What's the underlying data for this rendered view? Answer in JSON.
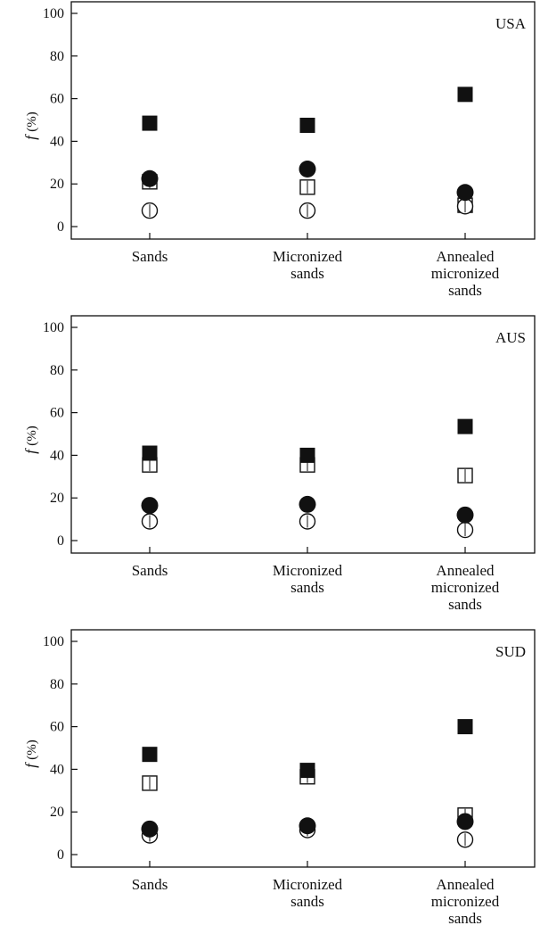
{
  "chart_data": [
    {
      "type": "scatter",
      "panel_label": "USA",
      "categories": [
        "Sands",
        "Micronized\nsands",
        "Annealed\nmicronized\nsands"
      ],
      "ylabel": "f (%)",
      "ylim": [
        0,
        100
      ],
      "yticks": [
        0,
        20,
        40,
        60,
        80,
        100
      ],
      "series": [
        {
          "marker": "filled-square",
          "values": [
            48.5,
            47.5,
            62
          ]
        },
        {
          "marker": "open-square",
          "values": [
            21,
            18.5,
            10
          ]
        },
        {
          "marker": "filled-circle",
          "values": [
            22.5,
            27,
            16
          ]
        },
        {
          "marker": "open-circle",
          "values": [
            7.5,
            7.5,
            9.5
          ]
        }
      ]
    },
    {
      "type": "scatter",
      "panel_label": "AUS",
      "categories": [
        "Sands",
        "Micronized\nsands",
        "Annealed\nmicronized\nsands"
      ],
      "ylabel": "f (%)",
      "ylim": [
        0,
        100
      ],
      "yticks": [
        0,
        20,
        40,
        60,
        80,
        100
      ],
      "series": [
        {
          "marker": "filled-square",
          "values": [
            41,
            40,
            53.5
          ]
        },
        {
          "marker": "open-square",
          "values": [
            35.5,
            35.5,
            30.5
          ]
        },
        {
          "marker": "filled-circle",
          "values": [
            16.5,
            17,
            12
          ]
        },
        {
          "marker": "open-circle",
          "values": [
            9,
            9,
            5
          ]
        }
      ]
    },
    {
      "type": "scatter",
      "panel_label": "SUD",
      "categories": [
        "Sands",
        "Micronized\nsands",
        "Annealed\nmicronized\nsands"
      ],
      "ylabel": "f (%)",
      "ylim": [
        0,
        100
      ],
      "yticks": [
        0,
        20,
        40,
        60,
        80,
        100
      ],
      "series": [
        {
          "marker": "filled-square",
          "values": [
            47,
            39.5,
            60
          ]
        },
        {
          "marker": "open-square",
          "values": [
            33.5,
            36.5,
            18.5
          ]
        },
        {
          "marker": "filled-circle",
          "values": [
            12,
            13.5,
            15.5
          ]
        },
        {
          "marker": "open-circle",
          "values": [
            9,
            11.5,
            7
          ]
        }
      ]
    }
  ]
}
